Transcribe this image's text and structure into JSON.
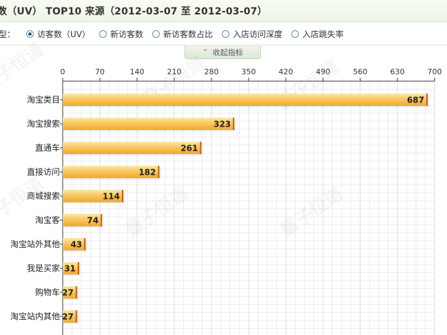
{
  "header": {
    "title": "数（UV） TOP10 来源（2012-03-07 至  2012-03-07）"
  },
  "type_selector": {
    "label": "型：",
    "options": [
      {
        "label": "访客数（UV）",
        "checked": true
      },
      {
        "label": "新访客数",
        "checked": false
      },
      {
        "label": "新访客数占比",
        "checked": false
      },
      {
        "label": "入店访问深度",
        "checked": false
      },
      {
        "label": "入店跳失率",
        "checked": false
      }
    ]
  },
  "collapse_button": {
    "label": "收起指标",
    "icon": "chevron-up-icon"
  },
  "chart_data": {
    "type": "bar",
    "orientation": "horizontal",
    "categories": [
      "淘宝类目",
      "淘宝搜索",
      "直通车",
      "直接访问",
      "商城搜索",
      "淘宝客",
      "淘宝站外其他",
      "我是买家",
      "购物车",
      "淘宝站内其他"
    ],
    "values": [
      687,
      323,
      261,
      182,
      114,
      74,
      43,
      31,
      27,
      27
    ],
    "x_ticks": [
      0,
      70,
      140,
      210,
      280,
      350,
      420,
      490,
      560,
      630,
      700
    ],
    "xlim": [
      0,
      700
    ],
    "grid": true,
    "bar_color": "#f7c35a",
    "bar_edge_color": "#c85a2a"
  },
  "watermark": "量子恒道"
}
